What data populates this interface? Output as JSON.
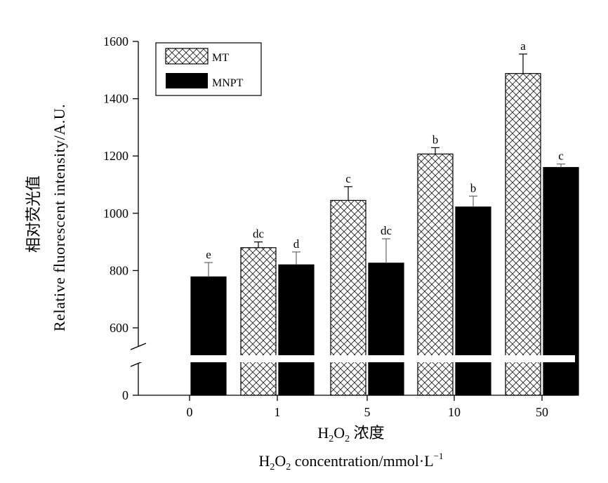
{
  "chart_data": {
    "type": "bar",
    "categories": [
      "0",
      "1",
      "5",
      "10",
      "50"
    ],
    "series": [
      {
        "name": "MT",
        "pattern": "crosshatch",
        "color": "#ffffff",
        "values": [
          null,
          880,
          1045,
          1207,
          1488
        ],
        "errors": [
          null,
          20,
          48,
          22,
          68
        ],
        "labels": [
          "",
          "dc",
          "c",
          "b",
          "a"
        ]
      },
      {
        "name": "MNPT",
        "pattern": "solid",
        "color": "#000000",
        "values": [
          778,
          820,
          826,
          1022,
          1160
        ],
        "errors": [
          50,
          45,
          85,
          38,
          12
        ],
        "labels": [
          "e",
          "d",
          "dc",
          "b",
          "c"
        ]
      }
    ],
    "y_ticks": [
      "0",
      "600",
      "800",
      "1000",
      "1200",
      "1400",
      "1600"
    ],
    "ylim": [
      500,
      1600
    ],
    "axis_break": "between 0 and 600",
    "xlabel": {
      "chinese": "浓度",
      "english": "concentration/mmol·L"
    },
    "ylabel": {
      "chinese": "相对荧光值",
      "english": "Relative fluorescent intensity/A.U."
    },
    "legend": {
      "placement": "top-left",
      "entries": [
        "MT",
        "MNPT"
      ]
    },
    "grid": false
  }
}
